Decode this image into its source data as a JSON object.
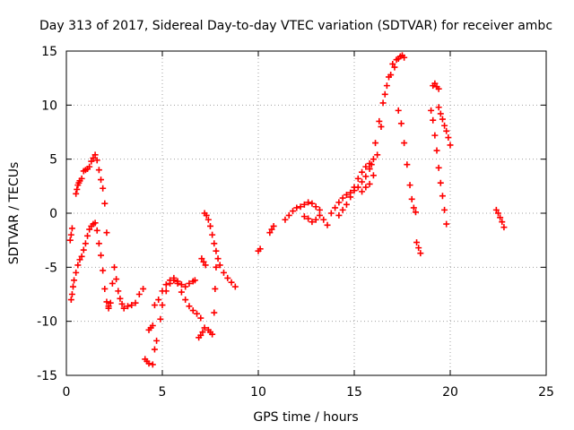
{
  "chart_data": {
    "type": "scatter",
    "title": "Day 313 of 2017, Sidereal Day-to-day VTEC variation (SDTVAR) for receiver ambc",
    "xlabel": "GPS time / hours",
    "ylabel": "SDTVAR / TECUs",
    "xlim": [
      0,
      25
    ],
    "ylim": [
      -15,
      15
    ],
    "xticks": [
      "0",
      "5",
      "10",
      "15",
      "20",
      "25"
    ],
    "yticks": [
      "-15",
      "-10",
      "-5",
      "0",
      "5",
      "10",
      "15"
    ],
    "grid": true,
    "marker": "+",
    "color": "#ff0000",
    "series": [
      {
        "name": "s1",
        "x": [
          0.25,
          0.3,
          0.35,
          0.4,
          0.5,
          0.6,
          0.7,
          0.8,
          0.9,
          1.0,
          1.1,
          1.2,
          1.3,
          1.4,
          1.5,
          1.6,
          1.7,
          1.8,
          1.9,
          2.0,
          2.1,
          2.2
        ],
        "y": [
          -8.0,
          -7.5,
          -6.8,
          -6.2,
          -5.5,
          -4.8,
          -4.3,
          -4.0,
          -3.4,
          -2.8,
          -2.1,
          -1.5,
          -1.2,
          -1.0,
          -0.9,
          -1.6,
          -2.8,
          -3.9,
          -5.3,
          -7.0,
          -8.2,
          -8.6
        ]
      },
      {
        "name": "s2",
        "x": [
          0.2,
          0.25,
          0.3
        ],
        "y": [
          -2.5,
          -2.0,
          -1.4
        ]
      },
      {
        "name": "s3",
        "x": [
          0.5,
          0.55,
          0.6,
          0.65,
          0.7,
          0.8
        ],
        "y": [
          1.8,
          2.2,
          2.6,
          2.8,
          3.0,
          3.2
        ]
      },
      {
        "name": "s4",
        "x": [
          0.9,
          1.0,
          1.1,
          1.2,
          1.3,
          1.4,
          1.5,
          1.6,
          1.7,
          1.8,
          1.9,
          2.0,
          2.1
        ],
        "y": [
          3.9,
          4.0,
          4.1,
          4.3,
          4.8,
          5.1,
          5.4,
          4.9,
          4.0,
          3.1,
          2.3,
          0.9,
          -1.8
        ]
      },
      {
        "name": "s5",
        "x": [
          2.2,
          2.3,
          2.4,
          2.5,
          2.6,
          2.7,
          2.8,
          2.9,
          3.0,
          3.2,
          3.4,
          3.6,
          3.8,
          4.0
        ],
        "y": [
          -8.8,
          -8.3,
          -6.5,
          -5.0,
          -6.1,
          -7.2,
          -7.9,
          -8.4,
          -8.8,
          -8.6,
          -8.5,
          -8.3,
          -7.5,
          -7.0
        ]
      },
      {
        "name": "s6",
        "x": [
          4.1,
          4.2,
          4.3,
          4.5,
          4.6,
          4.7,
          4.9,
          5.0,
          5.2,
          5.4,
          5.6,
          5.8,
          6.0,
          6.2,
          6.4,
          6.6,
          6.8,
          7.0
        ],
        "y": [
          -13.5,
          -13.7,
          -13.9,
          -14.0,
          -12.6,
          -11.8,
          -9.8,
          -8.5,
          -7.2,
          -6.5,
          -6.2,
          -6.5,
          -7.3,
          -8.0,
          -8.6,
          -9.0,
          -9.3,
          -9.7
        ]
      },
      {
        "name": "s7",
        "x": [
          4.3,
          4.4,
          4.5
        ],
        "y": [
          -10.8,
          -10.6,
          -10.4
        ]
      },
      {
        "name": "s8",
        "x": [
          4.6,
          4.8,
          5.0,
          5.2,
          5.4,
          5.6,
          5.8,
          6.0,
          6.2,
          6.4,
          6.6,
          6.7
        ],
        "y": [
          -8.5,
          -8.0,
          -7.2,
          -6.6,
          -6.2,
          -6.0,
          -6.3,
          -6.6,
          -6.8,
          -6.5,
          -6.3,
          -6.2
        ]
      },
      {
        "name": "s9",
        "x": [
          6.9,
          7.0,
          7.1,
          7.2
        ],
        "y": [
          -11.5,
          -11.3,
          -11.0,
          -10.6
        ]
      },
      {
        "name": "s10",
        "x": [
          7.05,
          7.15,
          7.25
        ],
        "y": [
          -4.2,
          -4.5,
          -4.8
        ]
      },
      {
        "name": "s11",
        "x": [
          7.2,
          7.3,
          7.4,
          7.5,
          7.6,
          7.7,
          7.8,
          7.9,
          8.0,
          8.2,
          8.4,
          8.6,
          8.8
        ],
        "y": [
          0.0,
          -0.2,
          -0.6,
          -1.2,
          -2.0,
          -2.8,
          -3.5,
          -4.2,
          -4.8,
          -5.5,
          -6.0,
          -6.4,
          -6.8
        ]
      },
      {
        "name": "s12",
        "x": [
          7.4,
          7.5,
          7.6,
          7.7,
          7.75,
          7.8
        ],
        "y": [
          -10.8,
          -11.0,
          -11.2,
          -9.2,
          -7.0,
          -5.0
        ]
      },
      {
        "name": "s13",
        "x": [
          10.0,
          10.1
        ],
        "y": [
          -3.5,
          -3.3
        ]
      },
      {
        "name": "s14",
        "x": [
          10.6,
          10.7,
          10.8
        ],
        "y": [
          -1.8,
          -1.5,
          -1.2
        ]
      },
      {
        "name": "s15",
        "x": [
          11.4,
          11.6,
          11.8,
          12.0,
          12.2,
          12.4,
          12.6,
          12.8,
          13.0,
          13.2
        ],
        "y": [
          -0.6,
          -0.2,
          0.2,
          0.5,
          0.6,
          0.8,
          1.0,
          0.9,
          0.6,
          0.3
        ]
      },
      {
        "name": "s16",
        "x": [
          12.4,
          12.6,
          12.8,
          13.0,
          13.2,
          13.4,
          13.6
        ],
        "y": [
          -0.3,
          -0.5,
          -0.8,
          -0.6,
          -0.2,
          -0.6,
          -1.1
        ]
      },
      {
        "name": "s17",
        "x": [
          13.8,
          14.0,
          14.2,
          14.4,
          14.6,
          14.8,
          15.0,
          15.2,
          15.4,
          15.6,
          15.8,
          16.0
        ],
        "y": [
          0.0,
          0.5,
          1.0,
          1.4,
          1.7,
          1.9,
          2.1,
          2.4,
          2.9,
          3.4,
          4.1,
          5.0
        ]
      },
      {
        "name": "s18",
        "x": [
          14.2,
          14.4,
          14.6,
          14.8,
          15.0,
          15.2,
          15.4,
          15.6,
          15.8
        ],
        "y": [
          -0.2,
          0.3,
          0.8,
          1.5,
          2.4,
          3.2,
          3.8,
          4.3,
          4.6
        ]
      },
      {
        "name": "s19",
        "x": [
          15.4,
          15.6,
          15.8,
          16.0,
          16.2,
          16.4,
          16.6,
          16.8,
          17.0,
          17.2
        ],
        "y": [
          2.0,
          2.4,
          2.7,
          3.5,
          5.4,
          8.0,
          11.0,
          12.6,
          13.8,
          14.2
        ]
      },
      {
        "name": "s20",
        "x": [
          15.9,
          16.1,
          16.3,
          16.5,
          16.7,
          16.9,
          17.1
        ],
        "y": [
          4.5,
          6.5,
          8.5,
          10.2,
          11.8,
          12.8,
          13.5
        ]
      },
      {
        "name": "s21",
        "x": [
          17.3,
          17.4,
          17.5,
          17.6
        ],
        "y": [
          14.3,
          14.5,
          14.6,
          14.4
        ]
      },
      {
        "name": "s22",
        "x": [
          17.3,
          17.45,
          17.6,
          17.75,
          17.9,
          18.0,
          18.1,
          18.2
        ],
        "y": [
          9.5,
          8.3,
          6.5,
          4.5,
          2.6,
          1.3,
          0.5,
          0.1
        ]
      },
      {
        "name": "s23",
        "x": [
          18.25,
          18.35,
          18.45
        ],
        "y": [
          -2.7,
          -3.2,
          -3.7
        ]
      },
      {
        "name": "s24",
        "x": [
          19.0,
          19.1,
          19.2,
          19.3,
          19.4,
          19.5,
          19.6,
          19.7,
          19.8
        ],
        "y": [
          9.5,
          8.6,
          7.2,
          5.8,
          4.2,
          2.8,
          1.6,
          0.3,
          -1.0
        ]
      },
      {
        "name": "s25",
        "x": [
          19.1,
          19.2,
          19.3,
          19.4
        ],
        "y": [
          11.8,
          12.0,
          11.7,
          11.5
        ]
      },
      {
        "name": "s26",
        "x": [
          19.4,
          19.5,
          19.6,
          19.7,
          19.8,
          19.9,
          20.0
        ],
        "y": [
          9.8,
          9.2,
          8.7,
          8.1,
          7.6,
          7.0,
          6.3
        ]
      },
      {
        "name": "s27",
        "x": [
          22.4,
          22.5,
          22.6,
          22.7,
          22.8
        ],
        "y": [
          0.3,
          0.0,
          -0.4,
          -0.8,
          -1.3
        ]
      }
    ]
  }
}
